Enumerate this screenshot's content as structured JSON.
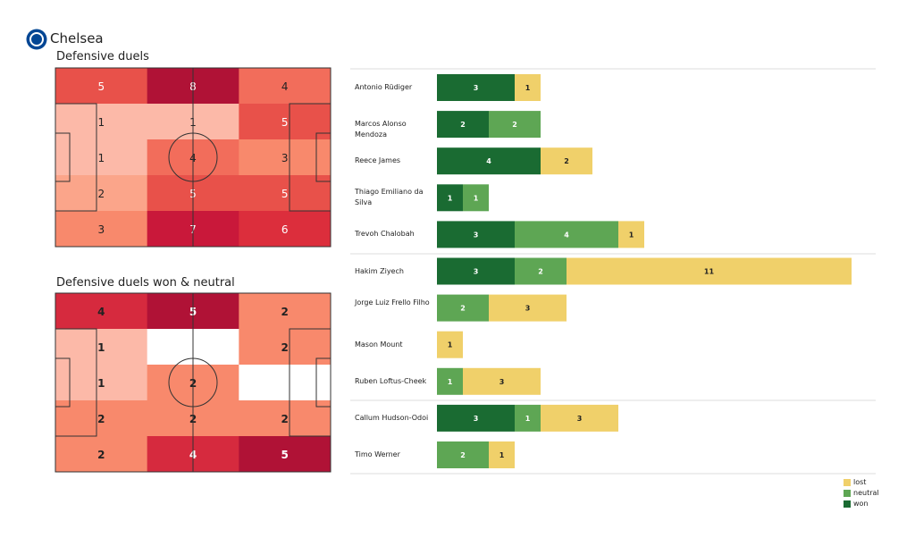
{
  "team": "Chelsea",
  "colors": {
    "won": "#1a6b32",
    "neutral": "#5ea654",
    "lost": "#f0d06a"
  },
  "chart_data": [
    {
      "type": "heatmap",
      "title": "Defensive duels",
      "rows": [
        [
          5,
          8,
          4
        ],
        [
          1,
          1,
          5
        ],
        [
          1,
          4,
          3
        ],
        [
          2,
          5,
          5
        ],
        [
          3,
          7,
          6
        ]
      ],
      "colors": [
        [
          "#e8514a",
          "#b01236",
          "#f26d5b"
        ],
        [
          "#fcb9a8",
          "#fcb9a8",
          "#e8514a"
        ],
        [
          "#fcb9a8",
          "#f26d5b",
          "#f8896c"
        ],
        [
          "#fba58a",
          "#e8514a",
          "#e8514a"
        ],
        [
          "#f8896c",
          "#c9183a",
          "#dc2e3c"
        ]
      ]
    },
    {
      "type": "heatmap",
      "title": "Defensive duels won & neutral",
      "rows": [
        [
          4,
          5,
          2
        ],
        [
          1,
          null,
          2
        ],
        [
          1,
          2,
          null
        ],
        [
          2,
          2,
          2
        ],
        [
          2,
          4,
          5
        ]
      ],
      "colors": [
        [
          "#d62a3e",
          "#b01236",
          "#f8896c"
        ],
        [
          "#fcb9a8",
          "#ffffff",
          "#f8896c"
        ],
        [
          "#fcb9a8",
          "#f8896c",
          "#ffffff"
        ],
        [
          "#f8896c",
          "#f8896c",
          "#f8896c"
        ],
        [
          "#f8896c",
          "#d62a3e",
          "#b01236"
        ]
      ]
    },
    {
      "type": "bar",
      "orientation": "horizontal",
      "stacked": true,
      "legend": [
        "lost",
        "neutral",
        "won"
      ],
      "legend_position": "bottom-right",
      "categories": [
        "Antonio Rüdiger",
        "Marcos  Alonso Mendoza",
        "Reece James",
        "Thiago Emiliano da Silva",
        "Trevoh Chalobah",
        "Hakim Ziyech",
        "Jorge Luiz Frello Filho",
        "Mason Mount",
        "Ruben Loftus-Cheek",
        "Callum Hudson-Odoi",
        "Timo Werner"
      ],
      "groups_separated_after": [
        4,
        8
      ],
      "series": [
        {
          "name": "won",
          "values": [
            3,
            2,
            4,
            1,
            3,
            3,
            0,
            0,
            0,
            3,
            0
          ]
        },
        {
          "name": "neutral",
          "values": [
            0,
            2,
            0,
            1,
            4,
            2,
            2,
            0,
            1,
            1,
            2
          ]
        },
        {
          "name": "lost",
          "values": [
            1,
            0,
            2,
            0,
            1,
            11,
            3,
            1,
            3,
            3,
            1
          ]
        }
      ]
    }
  ]
}
